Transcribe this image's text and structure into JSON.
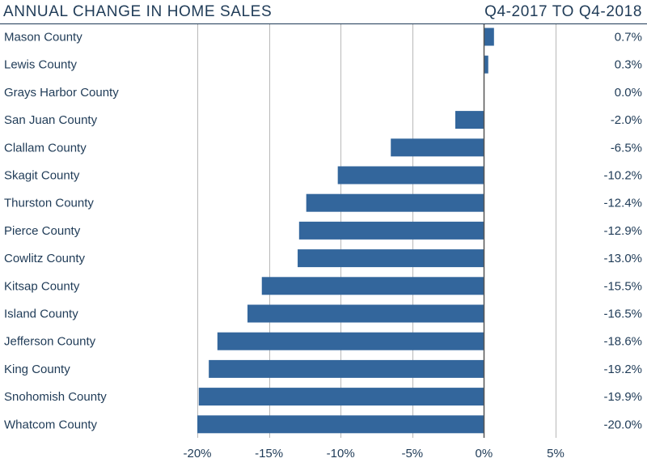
{
  "header": {
    "title": "ANNUAL CHANGE IN HOME SALES",
    "subtitle": "Q4-2017 TO Q4-2018"
  },
  "colors": {
    "bar": "#33669c",
    "text": "#1f3b57",
    "grid": "#b8b8b8",
    "zero_line": "#555555"
  },
  "chart_data": {
    "type": "bar",
    "orientation": "horizontal",
    "title": "ANNUAL CHANGE IN HOME SALES",
    "subtitle": "Q4-2017 TO Q4-2018",
    "categories": [
      "Mason County",
      "Lewis County",
      "Grays Harbor County",
      "San Juan County",
      "Clallam County",
      "Skagit County",
      "Thurston County",
      "Pierce County",
      "Cowlitz County",
      "Kitsap County",
      "Island County",
      "Jefferson County",
      "King County",
      "Snohomish County",
      "Whatcom County"
    ],
    "values": [
      0.7,
      0.3,
      0.0,
      -2.0,
      -6.5,
      -10.2,
      -12.4,
      -12.9,
      -13.0,
      -15.5,
      -16.5,
      -18.6,
      -19.2,
      -19.9,
      -20.0
    ],
    "value_labels": [
      "0.7%",
      "0.3%",
      "0.0%",
      "-2.0%",
      "-6.5%",
      "-10.2%",
      "-12.4%",
      "-12.9%",
      "-13.0%",
      "-15.5%",
      "-16.5%",
      "-18.6%",
      "-19.2%",
      "-19.9%",
      "-20.0%"
    ],
    "xlim": [
      -20,
      5
    ],
    "x_ticks": [
      -20,
      -15,
      -10,
      -5,
      0,
      5
    ],
    "x_tick_labels": [
      "-20%",
      "-15%",
      "-10%",
      "-5%",
      "0%",
      "5%"
    ],
    "grid": true,
    "legend": false
  }
}
